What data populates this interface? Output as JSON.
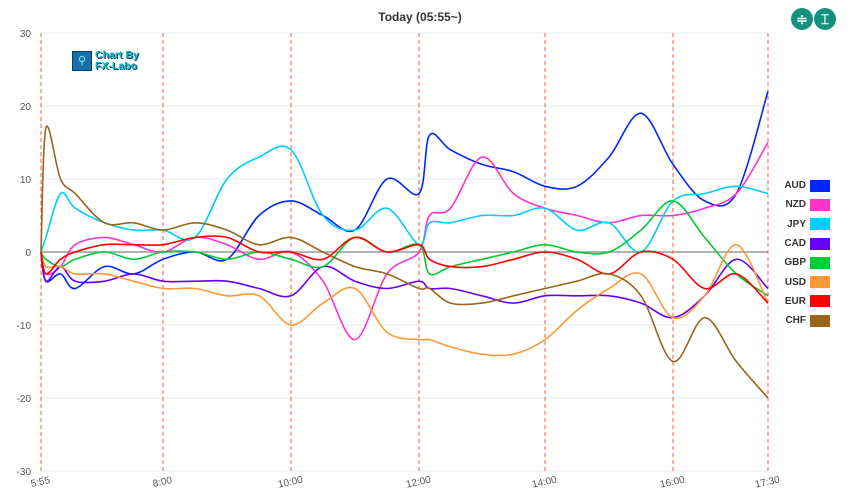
{
  "header": {
    "title": "Today  (05:55~)",
    "buttons": [
      {
        "name": "compress",
        "glyph": "≑"
      },
      {
        "name": "expand",
        "glyph": "⌶"
      }
    ]
  },
  "logo": {
    "line1": "Chart By",
    "line2": "FX-Labo"
  },
  "chart_data": {
    "type": "line",
    "title": "Today  (05:55~)",
    "xlabel": "",
    "ylabel": "",
    "ylim": [
      -30,
      30
    ],
    "yticks": [
      30,
      20,
      10,
      0,
      -10,
      -20,
      -30
    ],
    "xticks": [
      "5:55",
      "8:00",
      "10:00",
      "12:00",
      "14:00",
      "16:00",
      "17:30"
    ],
    "grid": true,
    "legend_position": "right",
    "x": [
      "5:55",
      "6:00",
      "6:15",
      "6:30",
      "7:00",
      "7:30",
      "8:00",
      "8:30",
      "9:00",
      "9:30",
      "10:00",
      "10:30",
      "11:00",
      "11:30",
      "12:00",
      "12:10",
      "12:30",
      "13:00",
      "13:30",
      "14:00",
      "14:30",
      "15:00",
      "15:30",
      "16:00",
      "16:30",
      "17:00",
      "17:30"
    ],
    "series": [
      {
        "name": "AUD",
        "color": "#0026ff",
        "values": [
          0,
          -4,
          -3,
          -5,
          -2,
          -3,
          -1,
          0,
          -1,
          5,
          7,
          5,
          3,
          10,
          8,
          16,
          14,
          12,
          11,
          9,
          9,
          13,
          19,
          12,
          7,
          8,
          22
        ]
      },
      {
        "name": "NZD",
        "color": "#ff33cc",
        "values": [
          0,
          -3,
          -2,
          1,
          2,
          1,
          0,
          2,
          1,
          -1,
          0,
          -4,
          -12,
          -3,
          0,
          5,
          6,
          13,
          8,
          6,
          5,
          4,
          5,
          5,
          6,
          8,
          15
        ]
      },
      {
        "name": "JPY",
        "color": "#00ccff",
        "values": [
          0,
          2,
          8,
          6,
          4,
          3,
          3,
          2,
          10,
          13,
          14,
          5,
          3,
          6,
          1,
          4,
          4,
          5,
          5,
          6,
          3,
          4,
          0,
          7,
          8,
          9,
          8
        ]
      },
      {
        "name": "CAD",
        "color": "#6600ff",
        "values": [
          0,
          -4,
          -2,
          -4,
          -4,
          -3,
          -4,
          -4,
          -4,
          -5,
          -6,
          -2,
          -4,
          -5,
          -4,
          -5,
          -5,
          -6,
          -7,
          -6,
          -6,
          -6,
          -7,
          -9,
          -6,
          -1,
          -5
        ]
      },
      {
        "name": "GBP",
        "color": "#00cc33",
        "values": [
          0,
          -1,
          -2,
          -1,
          0,
          -1,
          0,
          0,
          -1,
          0,
          -1,
          -2,
          2,
          0,
          1,
          -3,
          -2,
          -1,
          0,
          1,
          0,
          0,
          3,
          7,
          2,
          -3,
          -6
        ]
      },
      {
        "name": "USD",
        "color": "#ff9933",
        "values": [
          0,
          -2,
          -2,
          -3,
          -3,
          -4,
          -5,
          -5,
          -6,
          -6,
          -10,
          -7,
          -5,
          -11,
          -12,
          -12,
          -13,
          -14,
          -14,
          -12,
          -8,
          -5,
          -3,
          -9,
          -6,
          1,
          -7
        ]
      },
      {
        "name": "EUR",
        "color": "#ff0000",
        "values": [
          0,
          -3,
          -1,
          0,
          1,
          1,
          1,
          2,
          2,
          0,
          0,
          -1,
          2,
          0,
          1,
          -1,
          -2,
          -2,
          -1,
          0,
          -1,
          -3,
          0,
          -1,
          -5,
          -3,
          -7
        ]
      },
      {
        "name": "CHF",
        "color": "#996619",
        "values": [
          0,
          17,
          10,
          8,
          4,
          4,
          3,
          4,
          3,
          1,
          2,
          0,
          -2,
          -3,
          -5,
          -5,
          -7,
          -7,
          -6,
          -5,
          -4,
          -3,
          -6,
          -15,
          -9,
          -15,
          -20
        ]
      }
    ]
  }
}
